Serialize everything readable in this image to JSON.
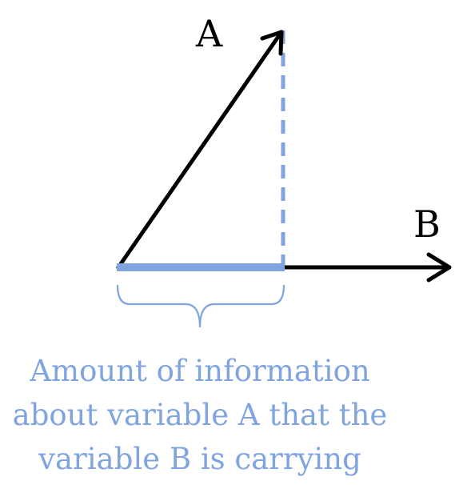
{
  "vectors": {
    "a_label": "A",
    "b_label": "B"
  },
  "caption": {
    "lines": [
      "Amount of information",
      "about variable A that the",
      "variable B is carrying"
    ]
  },
  "colors": {
    "vector": "#000000",
    "projection": "#7fa4e0"
  }
}
